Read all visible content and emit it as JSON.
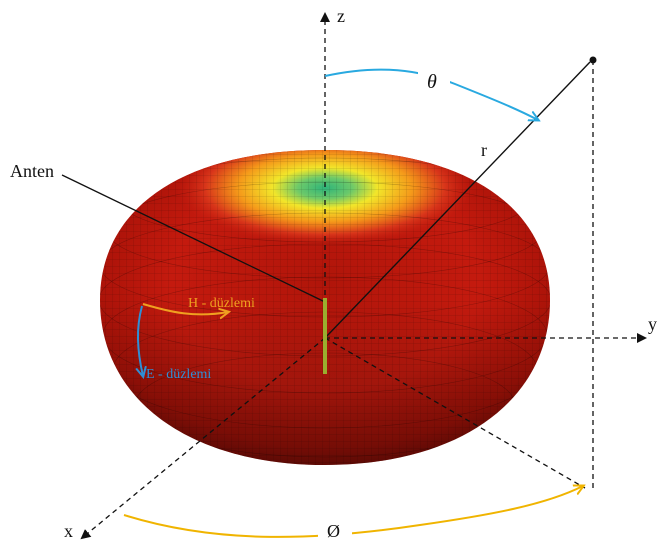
{
  "labels": {
    "z_axis": "z",
    "y_axis": "y",
    "x_axis": "x",
    "theta": "θ",
    "radius": "r",
    "phi": "Ø",
    "antenna": "Anten",
    "h_plane": "H - düzlemi",
    "e_plane": "E - düzlemi"
  },
  "colors": {
    "pattern_outer": "#c41a0e",
    "pattern_dark": "#6e0b05",
    "pattern_top_yellow": "#f2e62a",
    "pattern_top_green": "#2fb47a",
    "antenna": "#9aae2f",
    "theta_arc": "#29a9e0",
    "phi_arc": "#f0b400",
    "h_plane": "#f0a020",
    "e_plane": "#2f8fd6",
    "axis": "#111111"
  }
}
